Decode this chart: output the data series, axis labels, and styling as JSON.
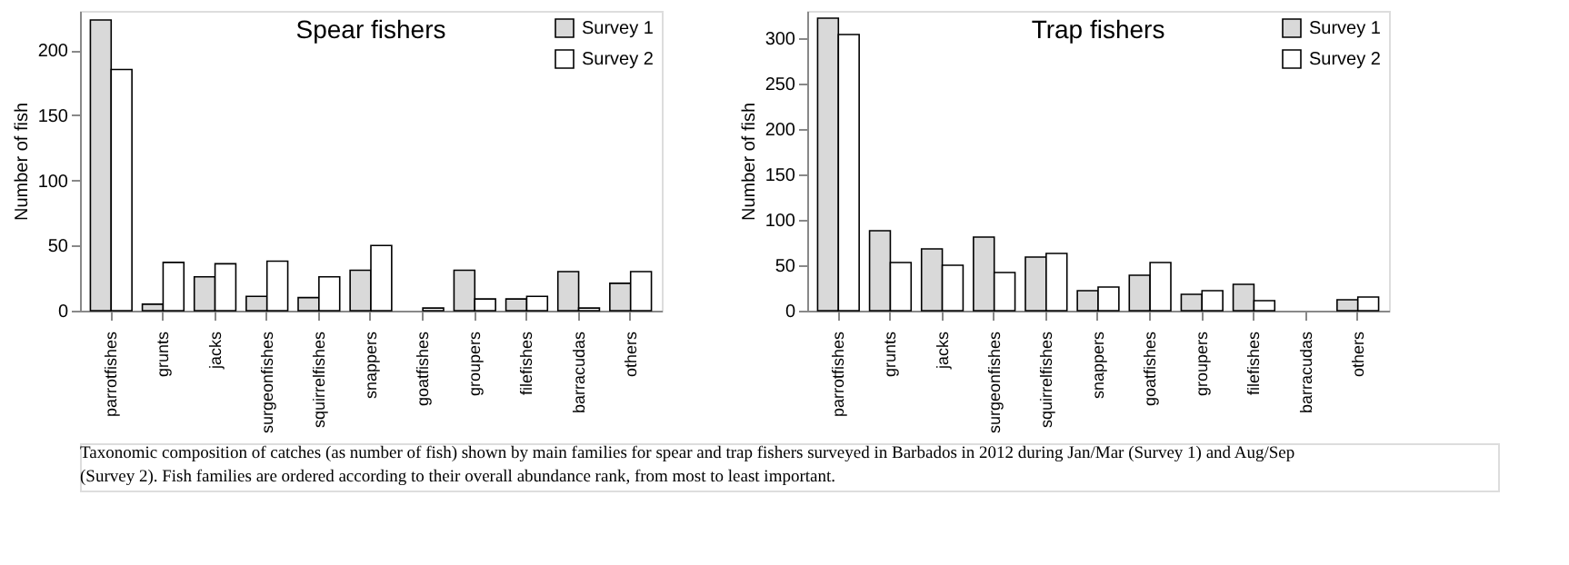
{
  "chart_data": [
    {
      "type": "bar",
      "title": "Spear fishers",
      "ylabel": "Number of fish",
      "categories": [
        "parrotfishes",
        "grunts",
        "jacks",
        "surgeonfishes",
        "squirrelfishes",
        "snappers",
        "goatfishes",
        "groupers",
        "filefishes",
        "barracudas",
        "others"
      ],
      "series": [
        {
          "name": "Survey 1",
          "color": "#d9d9d9",
          "values": [
            223,
            5,
            26,
            11,
            10,
            31,
            null,
            31,
            9,
            30,
            21
          ]
        },
        {
          "name": "Survey 2",
          "color": "#ffffff",
          "values": [
            185,
            37,
            36,
            38,
            26,
            50,
            2,
            9,
            11,
            2,
            30
          ]
        }
      ],
      "ylim": [
        0,
        230
      ],
      "yticks": [
        0,
        50,
        100,
        150,
        200
      ],
      "grid": false,
      "legend": "top right",
      "annotations": [
        "Taxonomic composition of catches (as number of fish) shown by main families for spear and trap fishers surveyed in Barbados in 2012 during Jan/Mar (Survey 1) and Aug/Sep (Survey 2). Fish families are ordered according to their overall abundance rank, from most to least important."
      ]
    },
    {
      "type": "bar",
      "title": "Trap fishers",
      "ylabel": "Number of fish",
      "categories": [
        "parrotfishes",
        "grunts",
        "jacks",
        "surgeonfishes",
        "squirrelfishes",
        "snappers",
        "goatfishes",
        "groupers",
        "filefishes",
        "barracudas",
        "others"
      ],
      "series": [
        {
          "name": "Survey 1",
          "color": "#d9d9d9",
          "values": [
            322,
            88,
            68,
            81,
            59,
            22,
            39,
            18,
            29,
            null,
            12
          ]
        },
        {
          "name": "Survey 2",
          "color": "#ffffff",
          "values": [
            304,
            53,
            50,
            42,
            63,
            26,
            53,
            22,
            11,
            null,
            15
          ]
        }
      ],
      "ylim": [
        0,
        330
      ],
      "yticks": [
        0,
        50,
        100,
        150,
        200,
        250,
        300
      ],
      "grid": false,
      "legend": "top right"
    }
  ]
}
